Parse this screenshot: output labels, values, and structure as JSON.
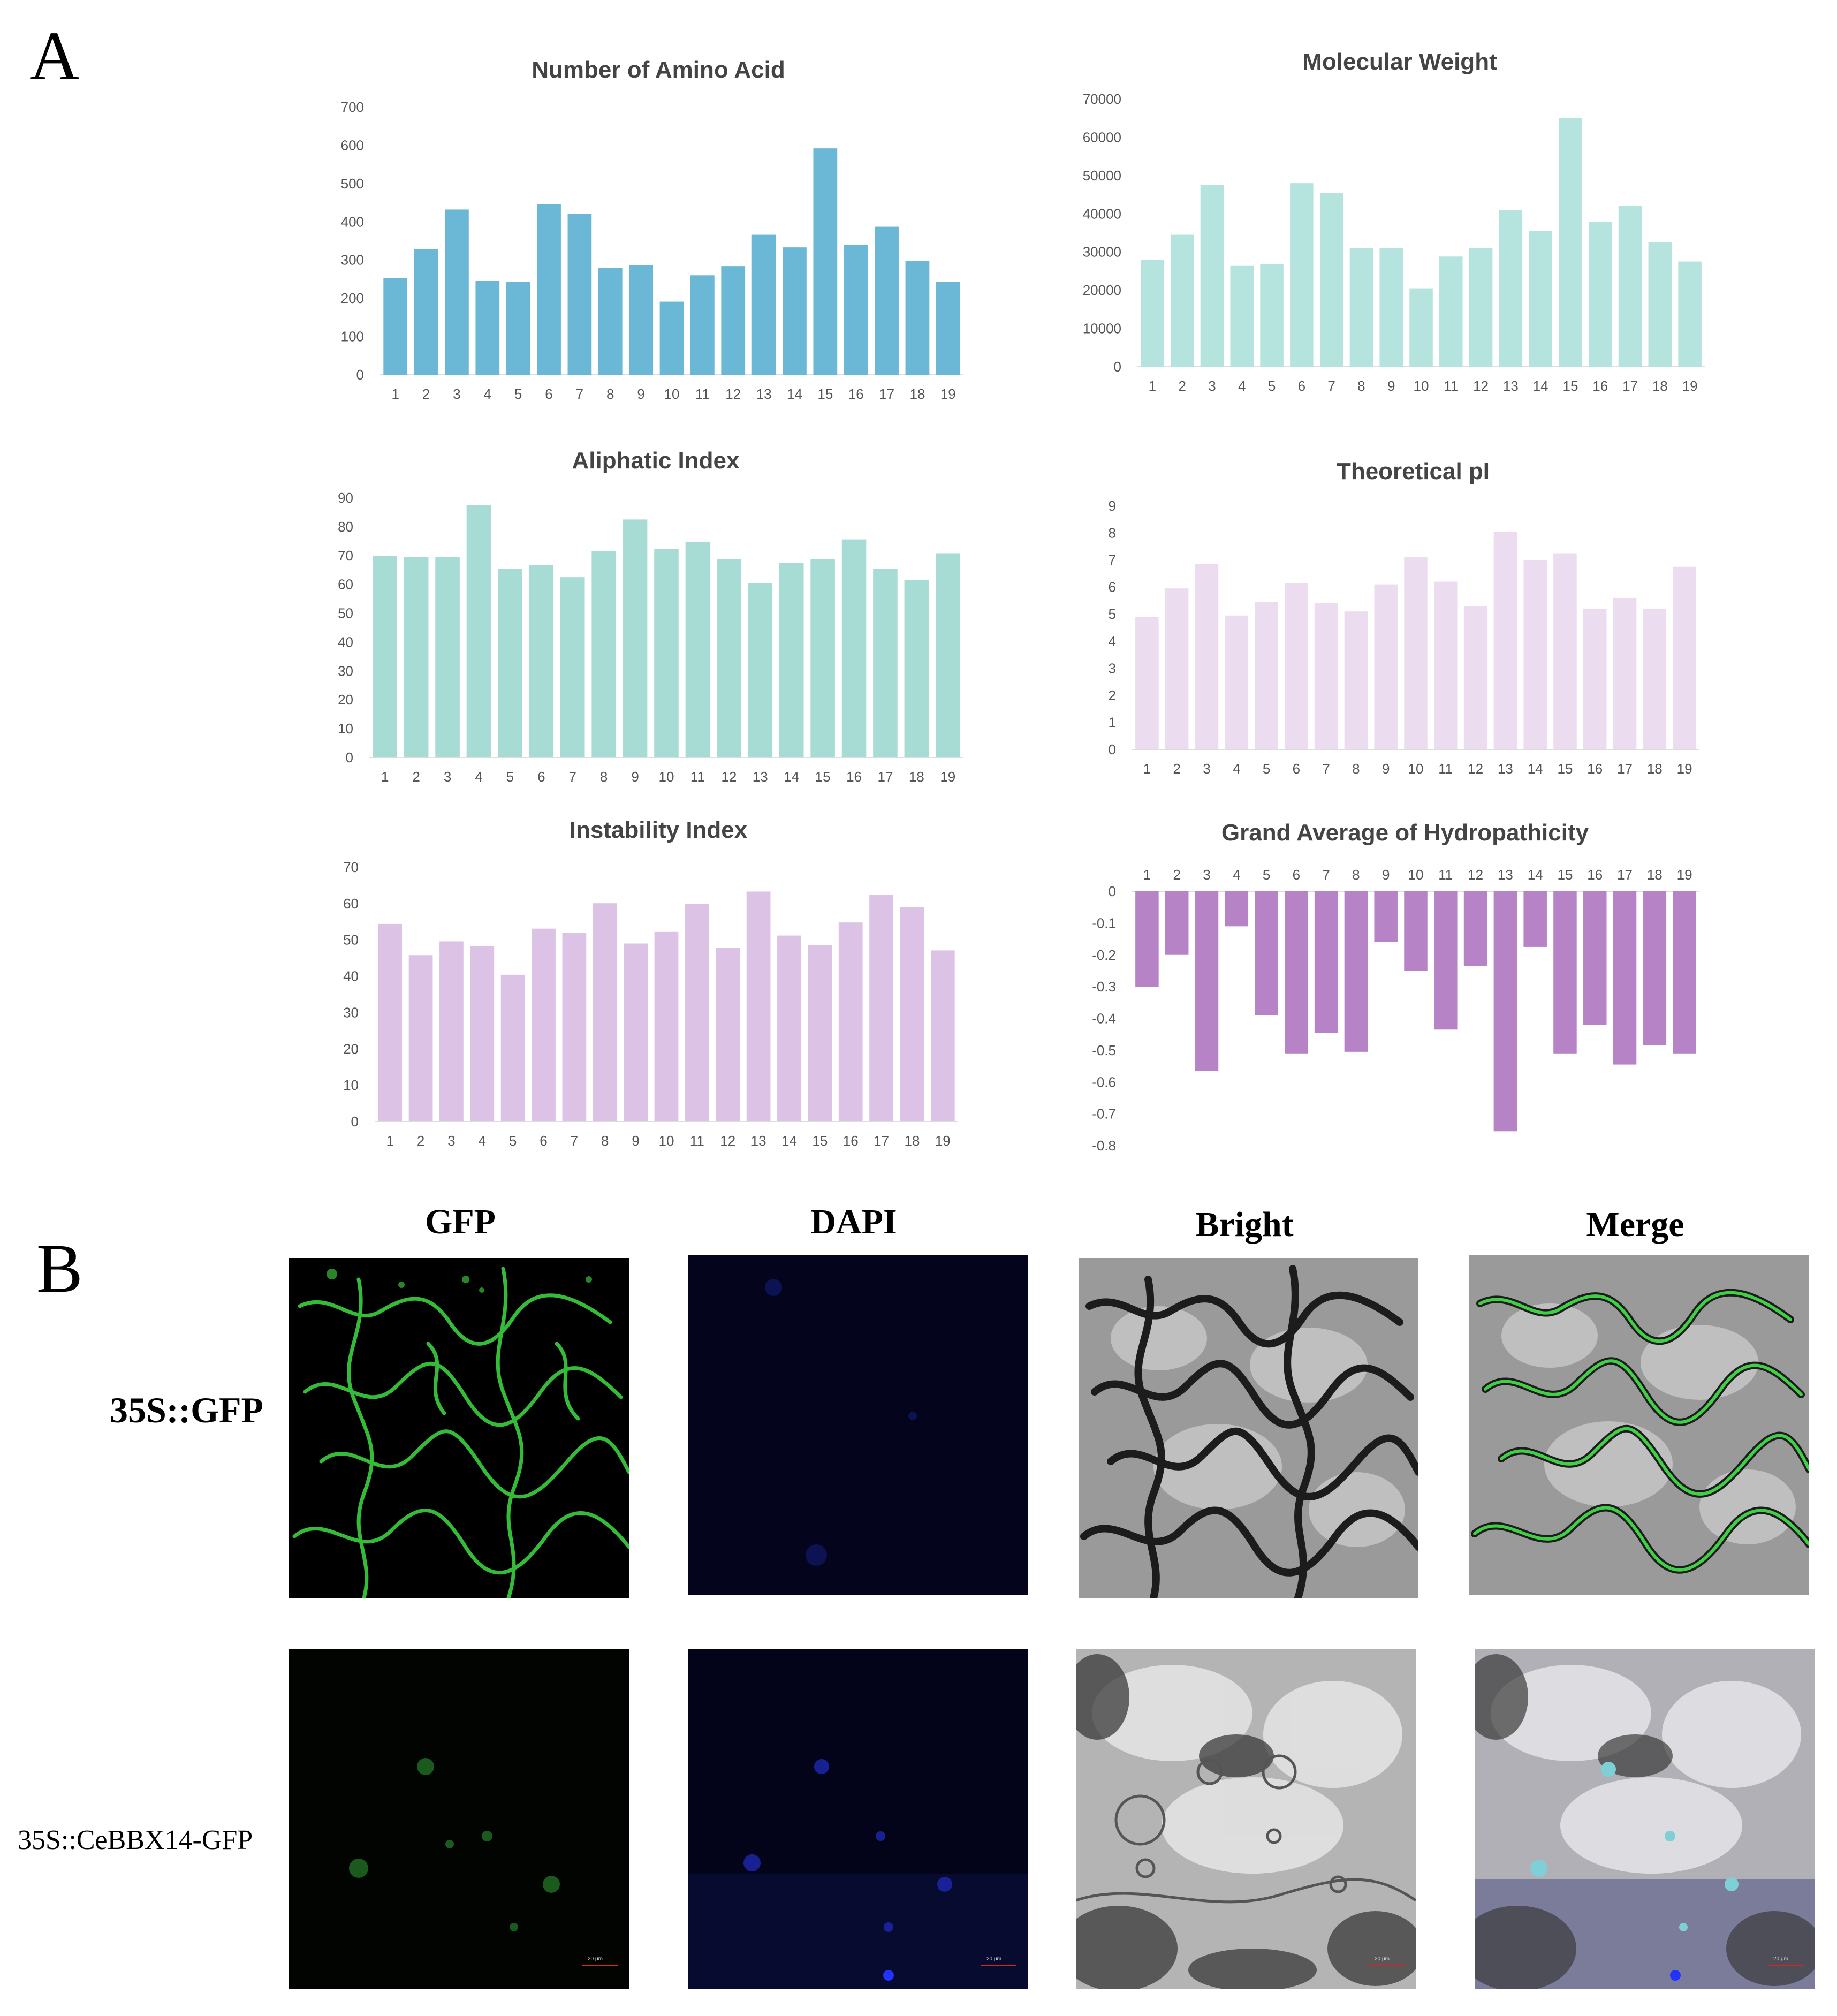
{
  "panel_a_label": "A",
  "panel_b_label": "B",
  "chart_data": [
    {
      "type": "bar",
      "title": "Number of Amino Acid",
      "categories": [
        "1",
        "2",
        "3",
        "4",
        "5",
        "6",
        "7",
        "8",
        "9",
        "10",
        "11",
        "12",
        "13",
        "14",
        "15",
        "16",
        "17",
        "18",
        "19"
      ],
      "values": [
        252,
        328,
        432,
        246,
        243,
        446,
        421,
        279,
        287,
        191,
        260,
        284,
        366,
        333,
        592,
        340,
        387,
        298,
        243
      ],
      "ylim": [
        0,
        700
      ],
      "yticks": [
        0,
        100,
        200,
        300,
        400,
        500,
        600,
        700
      ],
      "color": "#6bb8d6"
    },
    {
      "type": "bar",
      "title": "Molecular Weight",
      "categories": [
        "1",
        "2",
        "3",
        "4",
        "5",
        "6",
        "7",
        "8",
        "9",
        "10",
        "11",
        "12",
        "13",
        "14",
        "15",
        "16",
        "17",
        "18",
        "19"
      ],
      "values": [
        28000,
        34500,
        47500,
        26500,
        26800,
        48000,
        45500,
        31000,
        31000,
        20500,
        28800,
        31000,
        41000,
        35500,
        65000,
        37800,
        42000,
        32500,
        27500
      ],
      "ylim": [
        0,
        70000
      ],
      "yticks": [
        0,
        10000,
        20000,
        30000,
        40000,
        50000,
        60000,
        70000
      ],
      "color": "#b5e3dd"
    },
    {
      "type": "bar",
      "title": "Aliphatic Index",
      "categories": [
        "1",
        "2",
        "3",
        "4",
        "5",
        "6",
        "7",
        "8",
        "9",
        "10",
        "11",
        "12",
        "13",
        "14",
        "15",
        "16",
        "17",
        "18",
        "19"
      ],
      "values": [
        69.8,
        69.5,
        69.5,
        87.5,
        65.5,
        66.8,
        62.5,
        71.5,
        82.5,
        72.2,
        74.8,
        68.8,
        60.5,
        67.5,
        68.8,
        75.6,
        65.5,
        61.5,
        70.8
      ],
      "ylim": [
        0,
        90
      ],
      "yticks": [
        0,
        10,
        20,
        30,
        40,
        50,
        60,
        70,
        80,
        90
      ],
      "color": "#a6dcd3"
    },
    {
      "type": "bar",
      "title": "Theoretical pI",
      "categories": [
        "1",
        "2",
        "3",
        "4",
        "5",
        "6",
        "7",
        "8",
        "9",
        "10",
        "11",
        "12",
        "13",
        "14",
        "15",
        "16",
        "17",
        "18",
        "19"
      ],
      "values": [
        4.9,
        5.95,
        6.85,
        4.95,
        5.45,
        6.15,
        5.4,
        5.1,
        6.1,
        7.1,
        6.2,
        5.3,
        8.05,
        7.0,
        7.25,
        5.2,
        5.6,
        5.2,
        6.75
      ],
      "ylim": [
        0,
        9
      ],
      "yticks": [
        0,
        1,
        2,
        3,
        4,
        5,
        6,
        7,
        8,
        9
      ],
      "color": "#ecdcef"
    },
    {
      "type": "bar",
      "title": "Instability Index",
      "categories": [
        "1",
        "2",
        "3",
        "4",
        "5",
        "6",
        "7",
        "8",
        "9",
        "10",
        "11",
        "12",
        "13",
        "14",
        "15",
        "16",
        "17",
        "18",
        "19"
      ],
      "values": [
        54.4,
        45.8,
        49.6,
        48.3,
        40.4,
        53.1,
        52.0,
        60.1,
        49.0,
        52.2,
        59.9,
        47.8,
        63.3,
        51.2,
        48.6,
        54.8,
        62.4,
        59.1,
        47.1
      ],
      "ylim": [
        0,
        70
      ],
      "yticks": [
        0,
        10,
        20,
        30,
        40,
        50,
        60,
        70
      ],
      "color": "#dcc3e6"
    },
    {
      "type": "bar",
      "title": "Grand Average of Hydropathicity",
      "categories": [
        "1",
        "2",
        "3",
        "4",
        "5",
        "6",
        "7",
        "8",
        "9",
        "10",
        "11",
        "12",
        "13",
        "14",
        "15",
        "16",
        "17",
        "18",
        "19"
      ],
      "values": [
        -0.3,
        -0.2,
        -0.565,
        -0.11,
        -0.39,
        -0.51,
        -0.445,
        -0.505,
        -0.16,
        -0.25,
        -0.435,
        -0.235,
        -0.755,
        -0.175,
        -0.51,
        -0.42,
        -0.545,
        -0.485,
        -0.51
      ],
      "ylim": [
        -0.8,
        0
      ],
      "yticks": [
        0,
        -0.1,
        -0.2,
        -0.3,
        -0.4,
        -0.5,
        -0.6,
        -0.7,
        -0.8
      ],
      "color": "#b683c7"
    }
  ],
  "panel_b": {
    "columns": [
      "GFP",
      "DAPI",
      "Bright",
      "Merge"
    ],
    "rows": [
      "35S::GFP",
      "35S::CeBBX14-GFP"
    ],
    "scale_label": "20 μm"
  }
}
